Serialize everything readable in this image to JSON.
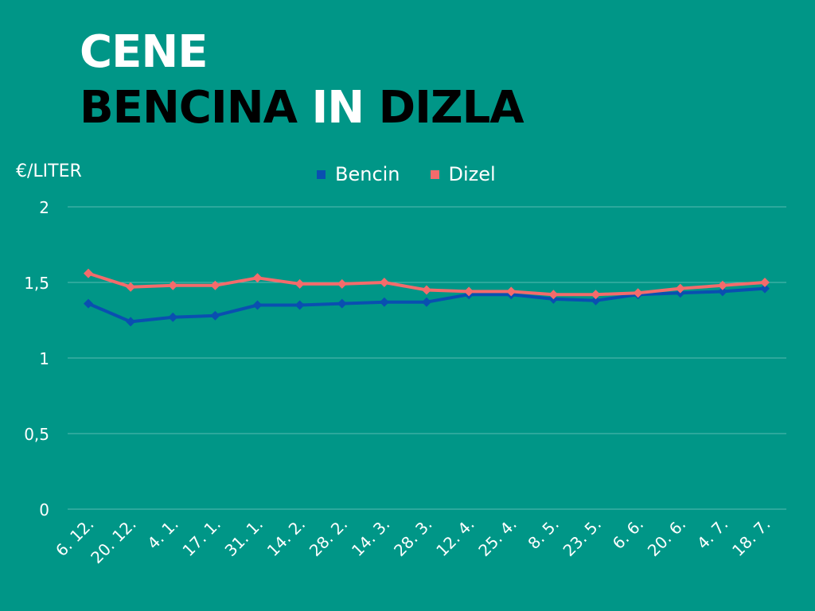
{
  "title": {
    "line1": "CENE",
    "line2_a": "BENCINA",
    "line2_b": "IN",
    "line2_c": "DIZLA"
  },
  "chart_data": {
    "type": "line",
    "ylabel": "€/LITER",
    "ylim": [
      0,
      2
    ],
    "yticks": [
      "0",
      "0,5",
      "1",
      "1,5",
      "2"
    ],
    "ytick_values": [
      0,
      0.5,
      1,
      1.5,
      2
    ],
    "grid": true,
    "legend_position": "top",
    "categories": [
      "6. 12.",
      "20. 12.",
      "4. 1.",
      "17. 1.",
      "31. 1.",
      "14. 2.",
      "28. 2.",
      "14. 3.",
      "28. 3.",
      "12. 4.",
      "25. 4.",
      "8. 5.",
      "23. 5.",
      "6. 6.",
      "20. 6.",
      "4. 7.",
      "18. 7."
    ],
    "series": [
      {
        "name": "Bencin",
        "color": "#0a4fb0",
        "values": [
          1.36,
          1.24,
          1.27,
          1.28,
          1.35,
          1.35,
          1.36,
          1.37,
          1.37,
          1.42,
          1.42,
          1.39,
          1.38,
          1.42,
          1.43,
          1.44,
          1.46
        ]
      },
      {
        "name": "Dizel",
        "color": "#f46b6b",
        "values": [
          1.56,
          1.47,
          1.48,
          1.48,
          1.53,
          1.49,
          1.49,
          1.5,
          1.45,
          1.44,
          1.44,
          1.42,
          1.42,
          1.43,
          1.46,
          1.48,
          1.5
        ]
      }
    ]
  }
}
